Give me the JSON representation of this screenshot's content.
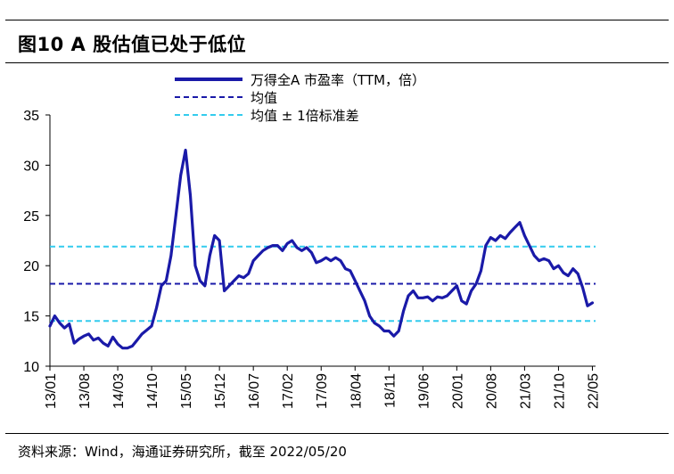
{
  "header": {
    "title": "图10 A 股估值已处于低位"
  },
  "footer": {
    "source": "资料来源：Wind，海通证券研究所，截至 2022/05/20"
  },
  "colors": {
    "series": "#1a1aa8",
    "mean": "#1a1aa8",
    "band": "#33ccee"
  },
  "chart_data": {
    "type": "line",
    "title": "",
    "xlabel": "",
    "ylabel": "",
    "ylim": [
      10,
      35
    ],
    "yticks": [
      "10",
      "15",
      "20",
      "25",
      "30",
      "35"
    ],
    "xticks": [
      "13/01",
      "13/08",
      "14/03",
      "14/10",
      "15/05",
      "15/12",
      "16/07",
      "17/02",
      "17/09",
      "18/04",
      "18/11",
      "19/06",
      "20/01",
      "20/08",
      "21/03",
      "21/10",
      "22/05"
    ],
    "grid": false,
    "legend_position": "top",
    "legend": {
      "series_label": "万得全A 市盈率（TTM，倍）",
      "mean_label": "均值",
      "band_label": "均值 ± 1倍标准差"
    },
    "mean": 18.2,
    "band_upper": 21.9,
    "band_lower": 14.5,
    "series": [
      {
        "name": "万得全A 市盈率（TTM，倍）",
        "x": [
          "2013-01",
          "2013-02",
          "2013-03",
          "2013-04",
          "2013-05",
          "2013-06",
          "2013-07",
          "2013-08",
          "2013-09",
          "2013-10",
          "2013-11",
          "2013-12",
          "2014-01",
          "2014-02",
          "2014-03",
          "2014-04",
          "2014-05",
          "2014-06",
          "2014-07",
          "2014-08",
          "2014-09",
          "2014-10",
          "2014-11",
          "2014-12",
          "2015-01",
          "2015-02",
          "2015-03",
          "2015-04",
          "2015-05",
          "2015-06",
          "2015-07",
          "2015-08",
          "2015-09",
          "2015-10",
          "2015-11",
          "2015-12",
          "2016-01",
          "2016-02",
          "2016-03",
          "2016-04",
          "2016-05",
          "2016-06",
          "2016-07",
          "2016-08",
          "2016-09",
          "2016-10",
          "2016-11",
          "2016-12",
          "2017-01",
          "2017-02",
          "2017-03",
          "2017-04",
          "2017-05",
          "2017-06",
          "2017-07",
          "2017-08",
          "2017-09",
          "2017-10",
          "2017-11",
          "2017-12",
          "2018-01",
          "2018-02",
          "2018-03",
          "2018-04",
          "2018-05",
          "2018-06",
          "2018-07",
          "2018-08",
          "2018-09",
          "2018-10",
          "2018-11",
          "2018-12",
          "2019-01",
          "2019-02",
          "2019-03",
          "2019-04",
          "2019-05",
          "2019-06",
          "2019-07",
          "2019-08",
          "2019-09",
          "2019-10",
          "2019-11",
          "2019-12",
          "2020-01",
          "2020-02",
          "2020-03",
          "2020-04",
          "2020-05",
          "2020-06",
          "2020-07",
          "2020-08",
          "2020-09",
          "2020-10",
          "2020-11",
          "2020-12",
          "2021-01",
          "2021-02",
          "2021-03",
          "2021-04",
          "2021-05",
          "2021-06",
          "2021-07",
          "2021-08",
          "2021-09",
          "2021-10",
          "2021-11",
          "2021-12",
          "2022-01",
          "2022-02",
          "2022-03",
          "2022-04",
          "2022-05"
        ],
        "values": [
          14.0,
          15.0,
          14.3,
          13.8,
          14.2,
          12.3,
          12.7,
          13.0,
          13.2,
          12.6,
          12.8,
          12.3,
          12.0,
          12.9,
          12.2,
          11.8,
          11.8,
          12.0,
          12.6,
          13.2,
          13.6,
          14.0,
          15.8,
          18.0,
          18.5,
          21.0,
          25.0,
          29.0,
          31.5,
          27.0,
          20.0,
          18.5,
          18.0,
          21.0,
          23.0,
          22.5,
          17.5,
          18.0,
          18.5,
          19.0,
          18.8,
          19.2,
          20.5,
          21.0,
          21.5,
          21.8,
          22.0,
          22.0,
          21.5,
          22.2,
          22.5,
          21.8,
          21.5,
          21.8,
          21.3,
          20.3,
          20.5,
          20.8,
          20.5,
          20.8,
          20.5,
          19.7,
          19.5,
          18.5,
          17.5,
          16.5,
          15.0,
          14.3,
          14.0,
          13.5,
          13.5,
          13.0,
          13.5,
          15.5,
          17.0,
          17.5,
          16.8,
          16.8,
          16.9,
          16.5,
          16.9,
          16.8,
          17.0,
          17.5,
          18.0,
          16.5,
          16.2,
          17.5,
          18.2,
          19.5,
          22.0,
          22.8,
          22.5,
          23.0,
          22.7,
          23.3,
          23.8,
          24.3,
          23.0,
          22.0,
          21.0,
          20.5,
          20.7,
          20.5,
          19.7,
          20.0,
          19.3,
          19.0,
          19.7,
          19.2,
          17.8,
          16.0,
          16.3
        ]
      }
    ]
  }
}
